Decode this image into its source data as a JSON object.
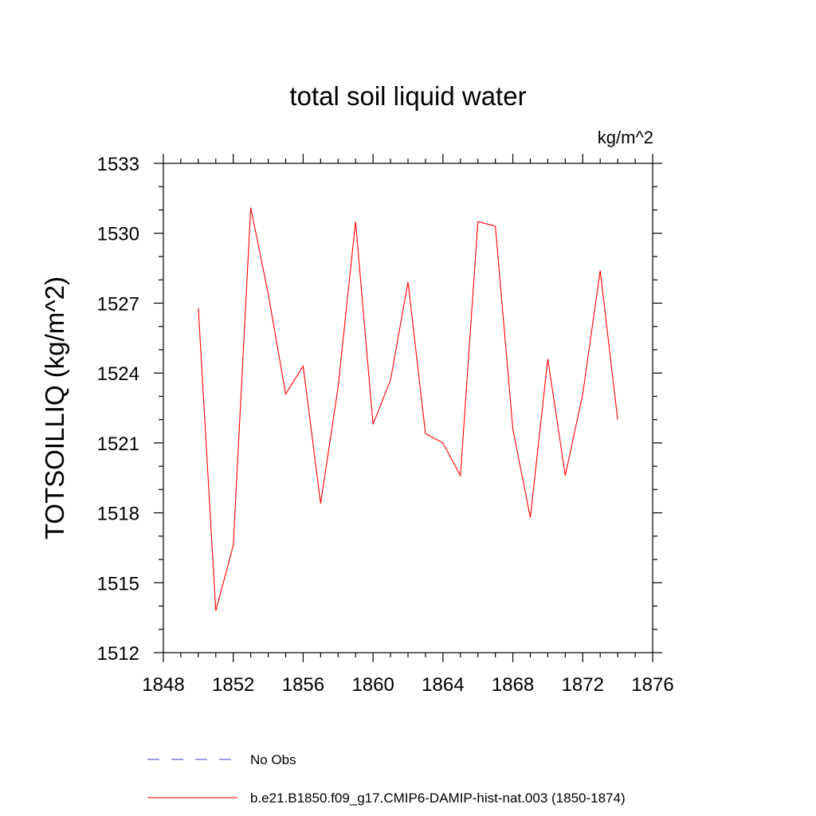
{
  "chart_data": {
    "type": "line",
    "title": "total soil liquid water",
    "units_label": "kg/m^2",
    "xlabel": "",
    "ylabel": "TOTSOILLIQ  (kg/m^2)",
    "xlim": [
      1848,
      1876
    ],
    "ylim": [
      1512,
      1533
    ],
    "xticks": [
      1848,
      1852,
      1856,
      1860,
      1864,
      1868,
      1872,
      1876
    ],
    "yticks": [
      1512,
      1515,
      1518,
      1521,
      1524,
      1527,
      1530,
      1533
    ],
    "grid": false,
    "legend_position": "bottom",
    "series": [
      {
        "name": "b.e21.B1850.f09_g17.CMIP6-DAMIP-hist-nat.003 (1850-1874)",
        "color": "#ff0000",
        "style": "solid",
        "x": [
          1850,
          1851,
          1852,
          1853,
          1854,
          1855,
          1856,
          1857,
          1858,
          1859,
          1860,
          1861,
          1862,
          1863,
          1864,
          1865,
          1866,
          1867,
          1868,
          1869,
          1870,
          1871,
          1872,
          1873,
          1874
        ],
        "y": [
          1526.8,
          1513.8,
          1516.6,
          1531.1,
          1527.4,
          1523.1,
          1524.3,
          1518.4,
          1523.4,
          1530.5,
          1521.8,
          1523.7,
          1527.9,
          1521.4,
          1521.0,
          1519.6,
          1530.5,
          1530.3,
          1521.6,
          1517.8,
          1524.6,
          1519.6,
          1523.1,
          1528.4,
          1522.0
        ]
      }
    ],
    "legend": [
      {
        "label": "No Obs",
        "color": "#3c3cc8",
        "style": "dashed"
      },
      {
        "label": "b.e21.B1850.f09_g17.CMIP6-DAMIP-hist-nat.003 (1850-1874)",
        "color": "#ff0000",
        "style": "solid"
      }
    ]
  }
}
